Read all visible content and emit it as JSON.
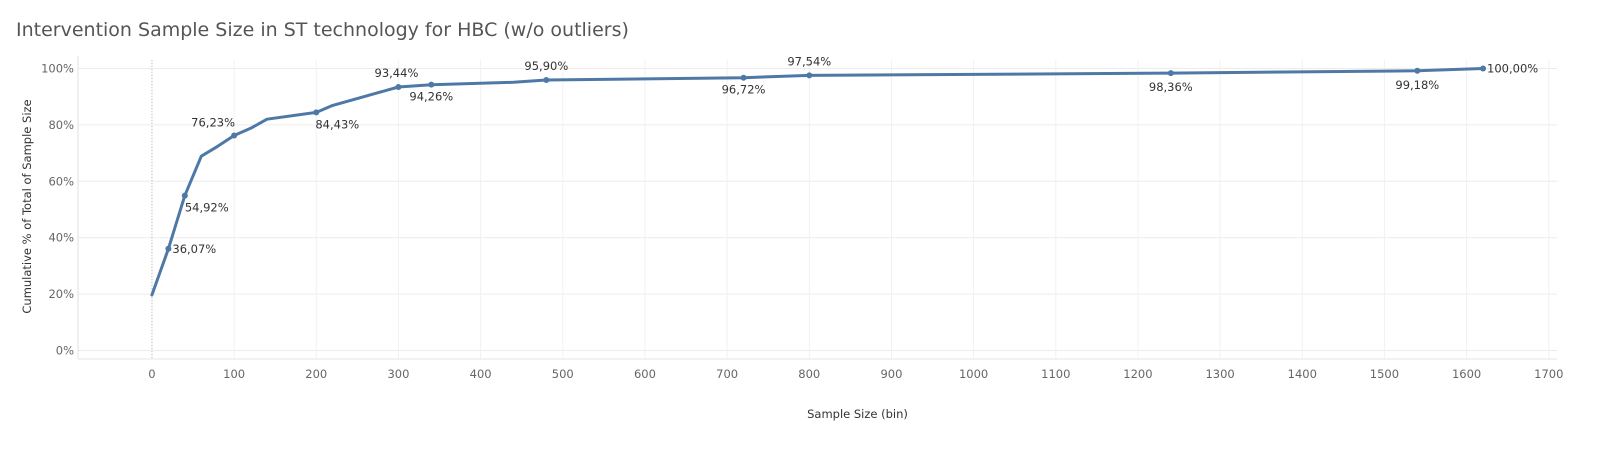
{
  "chart_data": {
    "type": "line",
    "title": "Intervention Sample Size in ST technology for HBC (w/o outliers)",
    "xlabel": "Sample Size (bin)",
    "ylabel": "Cumulative % of Total of Sample Size",
    "xlim": [
      -90,
      1710
    ],
    "ylim": [
      -3,
      103
    ],
    "x_ticks": [
      "0",
      "100",
      "200",
      "300",
      "400",
      "500",
      "600",
      "700",
      "800",
      "900",
      "1000",
      "1100",
      "1200",
      "1300",
      "1400",
      "1500",
      "1600",
      "1700"
    ],
    "y_ticks": [
      "0%",
      "20%",
      "40%",
      "60%",
      "80%",
      "100%"
    ],
    "grid": true,
    "color": "#4e79a7",
    "series": [
      {
        "x": [
          0,
          20,
          40,
          60,
          80,
          100,
          120,
          140,
          200,
          220,
          300,
          340,
          440,
          480,
          720,
          800,
          1240,
          1540,
          1620
        ],
        "values": [
          19.7,
          36.07,
          54.92,
          68.9,
          72.4,
          76.23,
          78.8,
          82.0,
          84.43,
          86.9,
          93.44,
          94.26,
          95.1,
          95.9,
          96.72,
          97.54,
          98.36,
          99.18,
          100.0
        ]
      }
    ],
    "data_labels": [
      {
        "x": 20,
        "y": 36.07,
        "text": "36,07%"
      },
      {
        "x": 40,
        "y": 54.92,
        "text": "54,92%"
      },
      {
        "x": 100,
        "y": 76.23,
        "text": "76,23%"
      },
      {
        "x": 200,
        "y": 84.43,
        "text": "84,43%"
      },
      {
        "x": 300,
        "y": 93.44,
        "text": "93,44%"
      },
      {
        "x": 340,
        "y": 94.26,
        "text": "94,26%"
      },
      {
        "x": 480,
        "y": 95.9,
        "text": "95,90%"
      },
      {
        "x": 720,
        "y": 96.72,
        "text": "96,72%"
      },
      {
        "x": 800,
        "y": 97.54,
        "text": "97,54%"
      },
      {
        "x": 1240,
        "y": 98.36,
        "text": "98,36%"
      },
      {
        "x": 1540,
        "y": 99.18,
        "text": "99,18%"
      },
      {
        "x": 1620,
        "y": 100.0,
        "text": "100,00%"
      }
    ]
  }
}
